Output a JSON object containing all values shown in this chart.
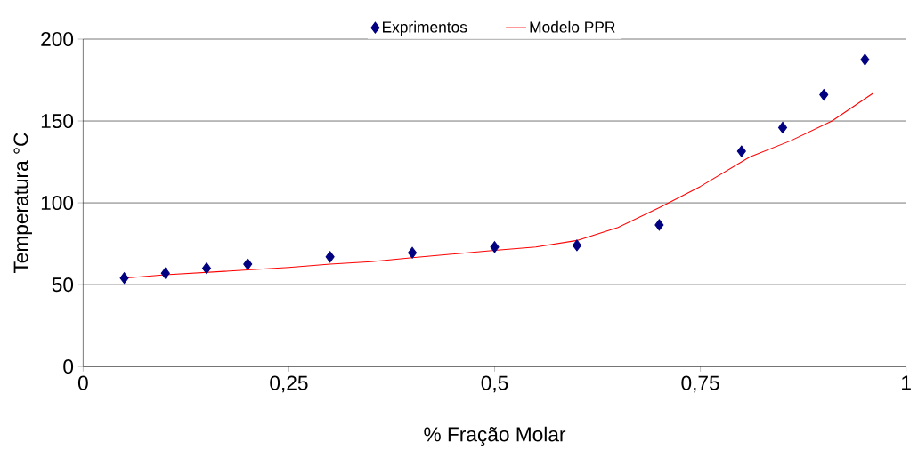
{
  "chart_data": {
    "type": "scatter",
    "xlabel": "% Fração Molar",
    "ylabel": "Temperatura °C",
    "xlim": [
      0,
      1
    ],
    "ylim": [
      0,
      200
    ],
    "xticks": [
      {
        "value": 0,
        "label": "0"
      },
      {
        "value": 0.25,
        "label": "0,25"
      },
      {
        "value": 0.5,
        "label": "0,5"
      },
      {
        "value": 0.75,
        "label": "0,75"
      },
      {
        "value": 1,
        "label": "1"
      }
    ],
    "yticks": [
      0,
      50,
      100,
      150,
      200
    ],
    "grid": "y",
    "legend": "top",
    "series": [
      {
        "name": "Exprimentos",
        "marker": "diamond",
        "color": "#000080",
        "x": [
          0.05,
          0.1,
          0.15,
          0.2,
          0.3,
          0.4,
          0.5,
          0.6,
          0.7,
          0.8,
          0.85,
          0.9,
          0.95
        ],
        "values": [
          54,
          57,
          60,
          62.5,
          67,
          69.5,
          73,
          74,
          86.5,
          131.5,
          146,
          166,
          187.5
        ]
      },
      {
        "name": "Modelo PPR",
        "type": "line",
        "marker": "none",
        "color": "#ff0000",
        "x": [
          0.05,
          0.1,
          0.2,
          0.25,
          0.3,
          0.35,
          0.4,
          0.5,
          0.55,
          0.6,
          0.65,
          0.7,
          0.75,
          0.81,
          0.86,
          0.91,
          0.96
        ],
        "values": [
          54,
          56,
          59,
          60.5,
          62.5,
          64,
          66.5,
          71,
          73,
          77,
          85,
          97,
          110,
          128,
          138,
          150,
          167
        ]
      }
    ]
  }
}
